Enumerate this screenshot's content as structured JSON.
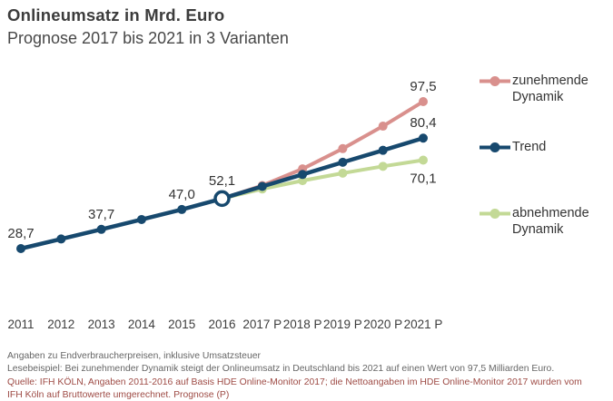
{
  "header": {
    "title": "Onlineumsatz in Mrd. Euro",
    "subtitle": "Prognose 2017 bis 2021 in 3 Varianten"
  },
  "legend": {
    "position": "right",
    "items": [
      {
        "label": "zunehmende Dynamik",
        "color": "#d9908d"
      },
      {
        "label": "Trend",
        "color": "#17496e"
      },
      {
        "label": "abnehmende Dynamik",
        "color": "#c3d996"
      }
    ]
  },
  "chart_data": {
    "type": "line",
    "title": "Onlineumsatz in Mrd. Euro",
    "subtitle": "Prognose 2017 bis 2021 in 3 Varianten",
    "unit": "Mrd. Euro",
    "categories": [
      "2011",
      "2012",
      "2013",
      "2014",
      "2015",
      "2016",
      "2017 P",
      "2018 P",
      "2019 P",
      "2020 P",
      "2021 P"
    ],
    "grid": false,
    "ylim": [
      25,
      102
    ],
    "legend_position": "right",
    "series": [
      {
        "name": "zunehmende Dynamik",
        "color": "#d9908d",
        "start_index": 5,
        "values": [
          52.1,
          58.2,
          66.0,
          75.5,
          86.0,
          97.5
        ],
        "labeled_points": [
          {
            "index": 10,
            "text": "97,5",
            "pos": "above"
          }
        ]
      },
      {
        "name": "Trend",
        "color": "#17496e",
        "start_index": 0,
        "values": [
          28.7,
          33.2,
          37.7,
          42.3,
          47.0,
          52.1,
          57.8,
          63.4,
          69.1,
          74.7,
          80.4
        ],
        "open_marker_index": 5,
        "labeled_points": [
          {
            "index": 0,
            "text": "28,7",
            "pos": "above"
          },
          {
            "index": 2,
            "text": "37,7",
            "pos": "above"
          },
          {
            "index": 4,
            "text": "47,0",
            "pos": "above"
          },
          {
            "index": 5,
            "text": "52,1",
            "pos": "above"
          },
          {
            "index": 10,
            "text": "80,4",
            "pos": "above"
          }
        ]
      },
      {
        "name": "abnehmende Dynamik",
        "color": "#c3d996",
        "start_index": 5,
        "values": [
          52.1,
          56.6,
          60.5,
          64.0,
          67.2,
          70.1
        ],
        "labeled_points": [
          {
            "index": 10,
            "text": "70,1",
            "pos": "below"
          }
        ]
      }
    ]
  },
  "footer": {
    "line1": "Angaben zu Endverbraucherpreisen, inklusive Umsatzsteuer",
    "line2": "Lesebeispiel: Bei zunehmender Dynamik steigt der Onlineumsatz in Deutschland bis 2021 auf einen Wert von 97,5 Milliarden Euro.",
    "source": "Quelle: IFH KÖLN, Angaben 2011-2016 auf Basis HDE Online-Monitor 2017; die Nettoangaben im HDE Online-Monitor 2017 wurden vom IFH Köln auf Bruttowerte umgerechnet. Prognose (P)",
    "source_color": "#9e4b45"
  }
}
